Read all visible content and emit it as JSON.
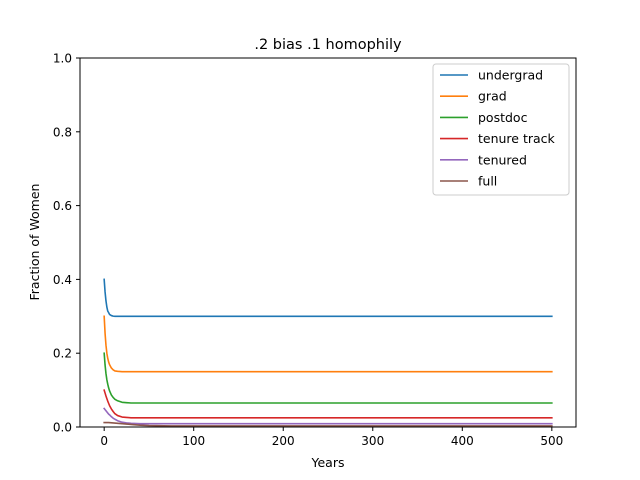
{
  "chart_data": {
    "type": "line",
    "title": ".2 bias .1 homophily",
    "xlabel": "Years",
    "ylabel": "Fraction of Women",
    "xlim": [
      -27,
      527
    ],
    "ylim": [
      0,
      1.0
    ],
    "xticks": [
      0,
      100,
      200,
      300,
      400,
      500
    ],
    "xtick_labels": [
      "0",
      "100",
      "200",
      "300",
      "400",
      "500"
    ],
    "yticks": [
      0,
      0.2,
      0.4,
      0.6,
      0.8,
      1.0
    ],
    "ytick_labels": [
      "0.0",
      "0.2",
      "0.4",
      "0.6",
      "0.8",
      "1.0"
    ],
    "grid": false,
    "legend_position": "top-right",
    "series": [
      {
        "name": "undergrad",
        "color": "#1f77b4",
        "x": [
          0,
          1,
          2,
          3,
          4,
          5,
          6,
          8,
          10,
          12,
          15,
          20,
          25,
          30,
          40,
          50,
          75,
          100,
          150,
          200,
          300,
          400,
          500
        ],
        "y": [
          0.4,
          0.366,
          0.342,
          0.325,
          0.314,
          0.31,
          0.305,
          0.302,
          0.3005,
          0.3,
          0.3,
          0.3,
          0.3,
          0.3,
          0.3,
          0.3,
          0.3,
          0.3,
          0.3,
          0.3,
          0.3,
          0.3,
          0.3
        ]
      },
      {
        "name": "grad",
        "color": "#ff7f0e",
        "x": [
          0,
          1,
          2,
          3,
          4,
          5,
          6,
          8,
          10,
          12,
          15,
          20,
          25,
          30,
          40,
          50,
          75,
          100,
          150,
          200,
          300,
          400,
          500
        ],
        "y": [
          0.3,
          0.254,
          0.222,
          0.2,
          0.186,
          0.176,
          0.169,
          0.16,
          0.155,
          0.152,
          0.151,
          0.15,
          0.15,
          0.15,
          0.15,
          0.15,
          0.15,
          0.15,
          0.15,
          0.15,
          0.15,
          0.15,
          0.15
        ]
      },
      {
        "name": "postdoc",
        "color": "#2ca02c",
        "x": [
          0,
          1,
          2,
          3,
          4,
          5,
          6,
          8,
          10,
          12,
          15,
          20,
          25,
          30,
          40,
          50,
          75,
          100,
          150,
          200,
          300,
          400,
          500
        ],
        "y": [
          0.2,
          0.168,
          0.145,
          0.128,
          0.116,
          0.106,
          0.098,
          0.087,
          0.08,
          0.075,
          0.071,
          0.067,
          0.066,
          0.065,
          0.065,
          0.065,
          0.065,
          0.065,
          0.065,
          0.065,
          0.065,
          0.065,
          0.065
        ]
      },
      {
        "name": "tenure track",
        "color": "#d62728",
        "x": [
          0,
          1,
          2,
          3,
          4,
          5,
          6,
          8,
          10,
          12,
          15,
          20,
          25,
          30,
          40,
          50,
          75,
          100,
          150,
          200,
          300,
          400,
          500
        ],
        "y": [
          0.1,
          0.092,
          0.084,
          0.077,
          0.07,
          0.064,
          0.058,
          0.049,
          0.042,
          0.036,
          0.031,
          0.027,
          0.026,
          0.025,
          0.025,
          0.025,
          0.025,
          0.025,
          0.025,
          0.025,
          0.025,
          0.025,
          0.025
        ]
      },
      {
        "name": "tenured",
        "color": "#9467bd",
        "x": [
          0,
          1,
          2,
          3,
          4,
          5,
          6,
          8,
          10,
          12,
          15,
          20,
          25,
          30,
          40,
          50,
          75,
          100,
          150,
          200,
          300,
          400,
          500
        ],
        "y": [
          0.05,
          0.047,
          0.044,
          0.041,
          0.038,
          0.035,
          0.033,
          0.028,
          0.024,
          0.021,
          0.017,
          0.013,
          0.011,
          0.01,
          0.009,
          0.009,
          0.009,
          0.009,
          0.009,
          0.009,
          0.009,
          0.009,
          0.009
        ]
      },
      {
        "name": "full",
        "color": "#8c564b",
        "x": [
          0,
          5,
          10,
          15,
          20,
          25,
          30,
          40,
          50,
          75,
          100,
          150,
          200,
          300,
          400,
          500
        ],
        "y": [
          0.012,
          0.012,
          0.011,
          0.01,
          0.009,
          0.008,
          0.007,
          0.005,
          0.004,
          0.003,
          0.003,
          0.003,
          0.003,
          0.003,
          0.003,
          0.003
        ]
      }
    ]
  }
}
